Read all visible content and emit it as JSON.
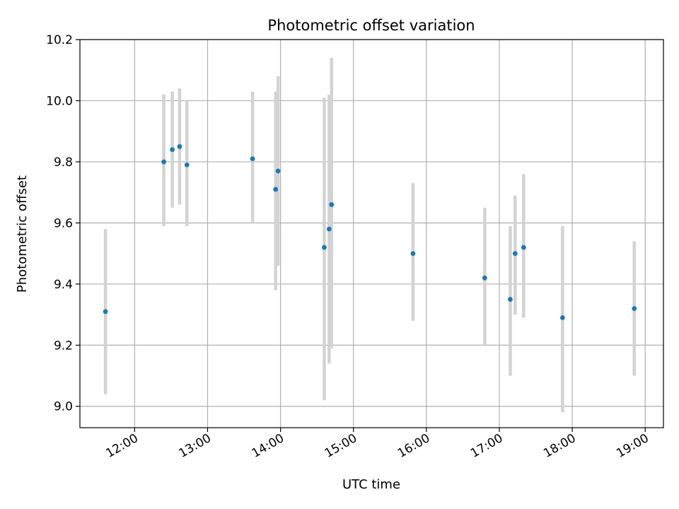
{
  "chart_data": {
    "type": "scatter",
    "title": "Photometric offset variation",
    "xlabel": "UTC time",
    "ylabel": "Photometric offset",
    "xlim": [
      "11:15",
      "19:15"
    ],
    "ylim": [
      8.93,
      10.2
    ],
    "x_ticks": [
      "12:00",
      "13:00",
      "14:00",
      "15:00",
      "16:00",
      "17:00",
      "18:00",
      "19:00"
    ],
    "y_ticks": [
      "9.0",
      "9.2",
      "9.4",
      "9.6",
      "9.8",
      "10.0",
      "10.2"
    ],
    "grid": true,
    "point_color": "#1f77b4",
    "errorbar_color": "#d3d3d3",
    "points": [
      {
        "time": "11:36",
        "y": 9.31,
        "low": 9.04,
        "high": 9.58
      },
      {
        "time": "12:24",
        "y": 9.8,
        "low": 9.59,
        "high": 10.02
      },
      {
        "time": "12:31",
        "y": 9.84,
        "low": 9.65,
        "high": 10.03
      },
      {
        "time": "12:37",
        "y": 9.85,
        "low": 9.66,
        "high": 10.04
      },
      {
        "time": "12:43",
        "y": 9.79,
        "low": 9.59,
        "high": 10.0
      },
      {
        "time": "13:37",
        "y": 9.81,
        "low": 9.6,
        "high": 10.03
      },
      {
        "time": "13:56",
        "y": 9.71,
        "low": 9.38,
        "high": 10.03
      },
      {
        "time": "13:58",
        "y": 9.77,
        "low": 9.46,
        "high": 10.08
      },
      {
        "time": "14:36",
        "y": 9.52,
        "low": 9.02,
        "high": 10.01
      },
      {
        "time": "14:40",
        "y": 9.58,
        "low": 9.14,
        "high": 10.02
      },
      {
        "time": "14:42",
        "y": 9.66,
        "low": 9.19,
        "high": 10.14
      },
      {
        "time": "15:49",
        "y": 9.5,
        "low": 9.28,
        "high": 9.73
      },
      {
        "time": "16:48",
        "y": 9.42,
        "low": 9.2,
        "high": 9.65
      },
      {
        "time": "17:09",
        "y": 9.35,
        "low": 9.1,
        "high": 9.59
      },
      {
        "time": "17:13",
        "y": 9.5,
        "low": 9.3,
        "high": 9.69
      },
      {
        "time": "17:20",
        "y": 9.52,
        "low": 9.29,
        "high": 9.76
      },
      {
        "time": "17:52",
        "y": 9.29,
        "low": 8.98,
        "high": 9.59
      },
      {
        "time": "18:51",
        "y": 9.32,
        "low": 9.1,
        "high": 9.54
      }
    ]
  }
}
